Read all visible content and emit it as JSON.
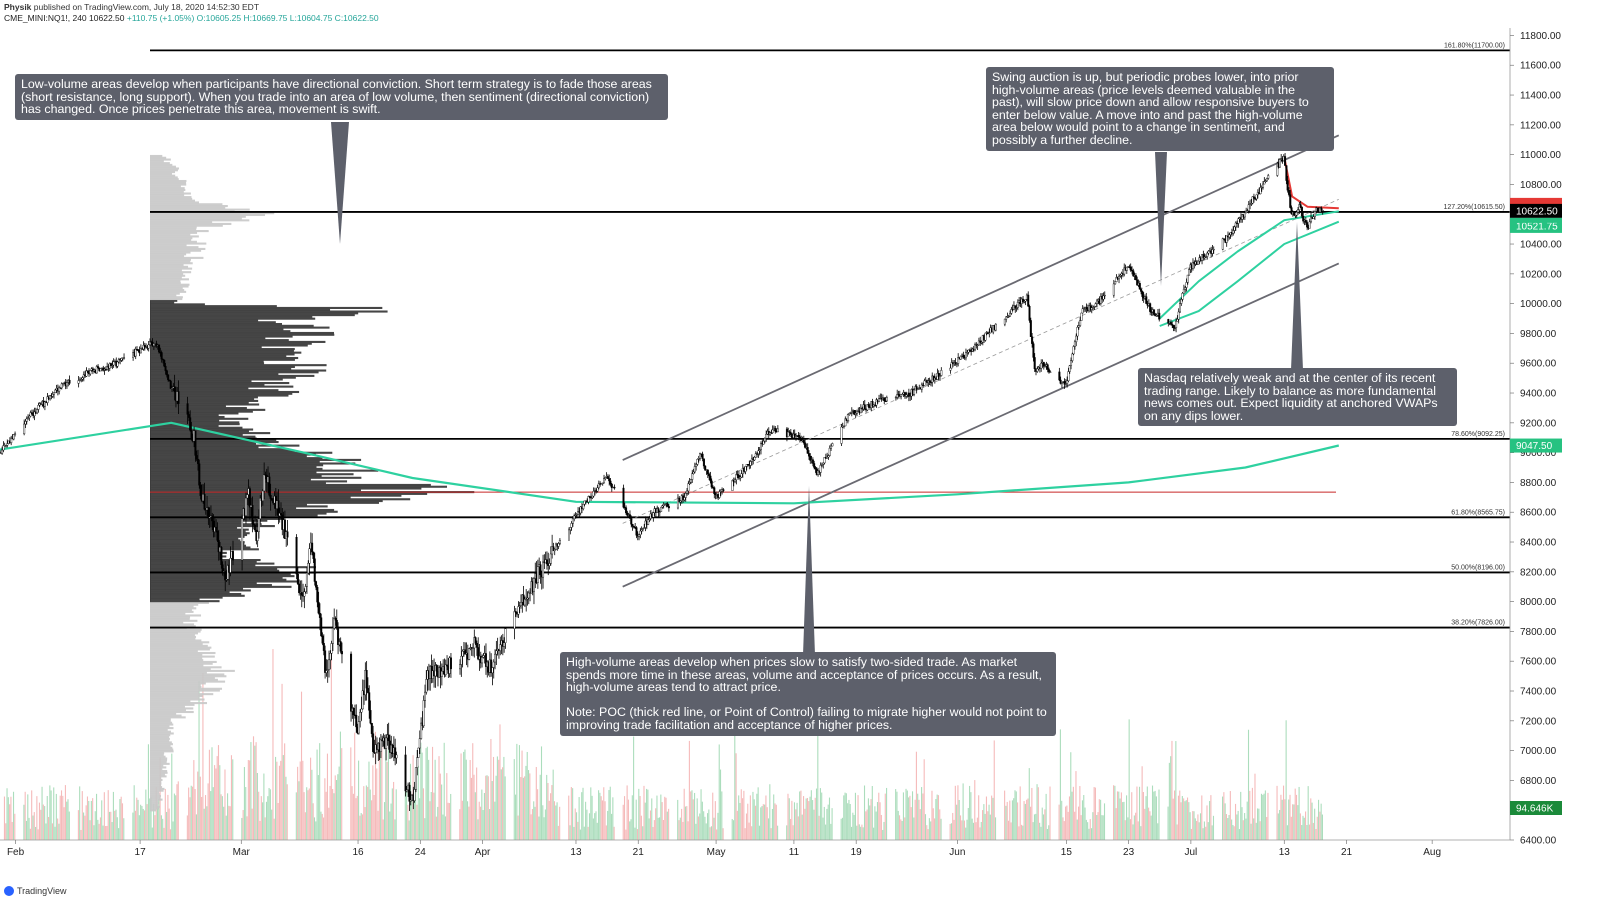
{
  "header": {
    "publisher": "Physik",
    "publish_line": " published on TradingView.com, July 18, 2020 14:52:30 EDT",
    "symbol": "CME_MINI:NQ1!, 240",
    "last": "10622.50",
    "change": "+110.75 (+1.05%)",
    "ohlc": "O:10605.25 H:10669.75 L:10604.75 C:10622.50"
  },
  "footer": {
    "brand": "TradingView"
  },
  "annotations": {
    "low_volume": "Low-volume areas develop when participants have directional conviction. Short term strategy is to fade those areas (short resistance, long support). When you trade into an area of low volume, then sentiment (directional conviction) has changed. Once prices penetrate this area, movement is swift.",
    "swing_auction": "Swing auction is up, but periodic probes lower, into prior high-volume areas (price levels deemed valuable in the past), will slow price down and allow responsive buyers to enter below value. A move into and past the high-volume area below would point to a change in sentiment, and possibly a further decline.",
    "nasdaq": "Nasdaq relatively weak and at the center of its recent trading range. Likely to balance as more fundamental news comes out. Expect liquidity at anchored VWAPs on any dips lower.",
    "high_volume": "High-volume areas develop when prices slow to satisfy two-sided trade. As market spends more time in these areas, volume and acceptance of prices occurs. As a result, high-volume areas tend to attract price.\n\nNote: POC (thick red line, or Point of Control) failing to migrate higher would not point to improving trade facilitation and acceptance of higher prices."
  },
  "colors": {
    "vwap": "#2ed1a0",
    "poc": "#c62828",
    "candle_up": "#ffffff",
    "candle_down": "#000000",
    "annotation_bg": "#5d606b",
    "price_tag": "#000000",
    "volume_tag": "#1b8a3a",
    "vwap_tag": "#26c281"
  },
  "chart_data": {
    "type": "candlestick",
    "symbol": "CME_MINI:NQ1!",
    "timeframe": "240",
    "ylim": [
      6400,
      11850
    ],
    "xlim": [
      "2020-01-30",
      "2020-08-11"
    ],
    "y_ticks": [
      6400,
      6600,
      6800,
      7000,
      7200,
      7400,
      7600,
      7800,
      8000,
      8200,
      8400,
      8600,
      8800,
      9000,
      9200,
      9400,
      9600,
      9800,
      10000,
      10200,
      10400,
      10600,
      10800,
      11000,
      11200,
      11400,
      11600,
      11800
    ],
    "y_tick_labels": [
      "6400.00",
      "6600.00",
      "6800.00",
      "7000.00",
      "7200.00",
      "7400.00",
      "7600.00",
      "7800.00",
      "8000.00",
      "8200.00",
      "8400.00",
      "8600.00",
      "8800.00",
      "9000.00",
      "9200.00",
      "9400.00",
      "9600.00",
      "9800.00",
      "10000.00",
      "10200.00",
      "10400.00",
      "10600.00",
      "10800.00",
      "11000.00",
      "11200.00",
      "11400.00",
      "11600.00",
      "11800.00"
    ],
    "x_ticks": [
      {
        "label": "Feb",
        "date": "2020-02-01"
      },
      {
        "label": "17",
        "date": "2020-02-17"
      },
      {
        "label": "Mar",
        "date": "2020-03-01"
      },
      {
        "label": "16",
        "date": "2020-03-16"
      },
      {
        "label": "24",
        "date": "2020-03-24"
      },
      {
        "label": "Apr",
        "date": "2020-04-01"
      },
      {
        "label": "13",
        "date": "2020-04-13"
      },
      {
        "label": "21",
        "date": "2020-04-21"
      },
      {
        "label": "May",
        "date": "2020-05-01"
      },
      {
        "label": "11",
        "date": "2020-05-11"
      },
      {
        "label": "19",
        "date": "2020-05-19"
      },
      {
        "label": "Jun",
        "date": "2020-06-01"
      },
      {
        "label": "15",
        "date": "2020-06-15"
      },
      {
        "label": "23",
        "date": "2020-06-23"
      },
      {
        "label": "Jul",
        "date": "2020-07-01"
      },
      {
        "label": "13",
        "date": "2020-07-13"
      },
      {
        "label": "21",
        "date": "2020-07-21"
      },
      {
        "label": "Aug",
        "date": "2020-08-01"
      }
    ],
    "price_path": [
      [
        "2020-01-30",
        9000
      ],
      [
        "2020-02-03",
        9250
      ],
      [
        "2020-02-07",
        9450
      ],
      [
        "2020-02-11",
        9550
      ],
      [
        "2020-02-14",
        9600
      ],
      [
        "2020-02-19",
        9750
      ],
      [
        "2020-02-21",
        9450
      ],
      [
        "2020-02-24",
        9100
      ],
      [
        "2020-02-25",
        8700
      ],
      [
        "2020-02-27",
        8400
      ],
      [
        "2020-02-28",
        8150
      ],
      [
        "2020-03-02",
        8700
      ],
      [
        "2020-03-03",
        8450
      ],
      [
        "2020-03-04",
        8850
      ],
      [
        "2020-03-06",
        8600
      ],
      [
        "2020-03-09",
        8000
      ],
      [
        "2020-03-10",
        8400
      ],
      [
        "2020-03-12",
        7500
      ],
      [
        "2020-03-13",
        7900
      ],
      [
        "2020-03-16",
        7100
      ],
      [
        "2020-03-17",
        7500
      ],
      [
        "2020-03-18",
        7000
      ],
      [
        "2020-03-20",
        7050
      ],
      [
        "2020-03-23",
        6650
      ],
      [
        "2020-03-25",
        7500
      ],
      [
        "2020-03-27",
        7550
      ],
      [
        "2020-03-31",
        7700
      ],
      [
        "2020-04-02",
        7550
      ],
      [
        "2020-04-06",
        8000
      ],
      [
        "2020-04-09",
        8250
      ],
      [
        "2020-04-14",
        8650
      ],
      [
        "2020-04-17",
        8850
      ],
      [
        "2020-04-21",
        8450
      ],
      [
        "2020-04-23",
        8600
      ],
      [
        "2020-04-27",
        8700
      ],
      [
        "2020-04-29",
        9000
      ],
      [
        "2020-05-01",
        8700
      ],
      [
        "2020-05-05",
        8900
      ],
      [
        "2020-05-08",
        9150
      ],
      [
        "2020-05-12",
        9100
      ],
      [
        "2020-05-14",
        8850
      ],
      [
        "2020-05-18",
        9250
      ],
      [
        "2020-05-22",
        9350
      ],
      [
        "2020-05-26",
        9400
      ],
      [
        "2020-05-29",
        9500
      ],
      [
        "2020-06-02",
        9650
      ],
      [
        "2020-06-05",
        9800
      ],
      [
        "2020-06-10",
        10050
      ],
      [
        "2020-06-11",
        9550
      ],
      [
        "2020-06-12",
        9600
      ],
      [
        "2020-06-15",
        9450
      ],
      [
        "2020-06-17",
        9950
      ],
      [
        "2020-06-19",
        10000
      ],
      [
        "2020-06-23",
        10250
      ],
      [
        "2020-06-26",
        9950
      ],
      [
        "2020-06-29",
        9850
      ],
      [
        "2020-07-01",
        10250
      ],
      [
        "2020-07-06",
        10450
      ],
      [
        "2020-07-09",
        10700
      ],
      [
        "2020-07-13",
        10980
      ],
      [
        "2020-07-14",
        10580
      ],
      [
        "2020-07-15",
        10650
      ],
      [
        "2020-07-16",
        10500
      ],
      [
        "2020-07-17",
        10622.5
      ]
    ],
    "fib_levels": [
      {
        "label": "161.80%(11700.00)",
        "price": 11700
      },
      {
        "label": "127.20%(10615.50)",
        "price": 10615.5
      },
      {
        "label": "78.60%(9092.25)",
        "price": 9092.25
      },
      {
        "label": "61.80%(8565.75)",
        "price": 8565.75
      },
      {
        "label": "50.00%(8196.00)",
        "price": 8196
      },
      {
        "label": "38.20%(7826.00)",
        "price": 7826
      }
    ],
    "poc_price": 8735,
    "channel": {
      "upper": [
        [
          "2020-04-19",
          8950
        ],
        [
          "2020-07-20",
          11130
        ]
      ],
      "lower": [
        [
          "2020-04-19",
          8100
        ],
        [
          "2020-07-20",
          10270
        ]
      ],
      "mid": [
        [
          "2020-04-19",
          8525
        ],
        [
          "2020-07-20",
          10700
        ]
      ]
    },
    "vwap_long": [
      [
        "2020-01-30",
        9020
      ],
      [
        "2020-02-21",
        9200
      ],
      [
        "2020-03-09",
        9000
      ],
      [
        "2020-03-23",
        8830
      ],
      [
        "2020-04-13",
        8670
      ],
      [
        "2020-05-11",
        8660
      ],
      [
        "2020-06-01",
        8720
      ],
      [
        "2020-06-23",
        8800
      ],
      [
        "2020-07-08",
        8900
      ],
      [
        "2020-07-20",
        9047.5
      ]
    ],
    "vwap_upper": [
      [
        "2020-06-27",
        9900
      ],
      [
        "2020-07-02",
        10150
      ],
      [
        "2020-07-07",
        10350
      ],
      [
        "2020-07-13",
        10560
      ],
      [
        "2020-07-20",
        10620
      ]
    ],
    "vwap_lower": [
      [
        "2020-06-27",
        9850
      ],
      [
        "2020-07-02",
        9950
      ],
      [
        "2020-07-07",
        10150
      ],
      [
        "2020-07-13",
        10400
      ],
      [
        "2020-07-20",
        10550
      ]
    ],
    "red_vwap": [
      [
        "2020-07-13",
        10980
      ],
      [
        "2020-07-14",
        10720
      ],
      [
        "2020-07-16",
        10650
      ],
      [
        "2020-07-20",
        10640
      ]
    ],
    "volume_profile": [
      [
        6600,
        0.03
      ],
      [
        6800,
        0.05
      ],
      [
        7000,
        0.07
      ],
      [
        7200,
        0.09
      ],
      [
        7400,
        0.22
      ],
      [
        7500,
        0.28
      ],
      [
        7600,
        0.2
      ],
      [
        7800,
        0.18
      ],
      [
        7900,
        0.15
      ],
      [
        8000,
        0.2
      ],
      [
        8100,
        0.45
      ],
      [
        8150,
        0.55
      ],
      [
        8200,
        0.58
      ],
      [
        8300,
        0.3
      ],
      [
        8400,
        0.35
      ],
      [
        8500,
        0.4
      ],
      [
        8600,
        0.55
      ],
      [
        8700,
        0.8
      ],
      [
        8735,
        1.0
      ],
      [
        8800,
        0.78
      ],
      [
        8900,
        0.72
      ],
      [
        9000,
        0.55
      ],
      [
        9100,
        0.42
      ],
      [
        9200,
        0.3
      ],
      [
        9300,
        0.35
      ],
      [
        9400,
        0.45
      ],
      [
        9500,
        0.5
      ],
      [
        9600,
        0.55
      ],
      [
        9700,
        0.5
      ],
      [
        9800,
        0.55
      ],
      [
        9900,
        0.5
      ],
      [
        9975,
        0.88
      ],
      [
        10000,
        0.1
      ],
      [
        10100,
        0.12
      ],
      [
        10200,
        0.14
      ],
      [
        10300,
        0.16
      ],
      [
        10400,
        0.18
      ],
      [
        10500,
        0.2
      ],
      [
        10600,
        0.38
      ],
      [
        10650,
        0.3
      ],
      [
        10700,
        0.15
      ],
      [
        10800,
        0.12
      ],
      [
        10900,
        0.09
      ],
      [
        11000,
        0.05
      ]
    ],
    "volume_profile_zone": [
      8000,
      10020
    ],
    "price_tags": [
      {
        "label": "10521.75",
        "price": 10521.75,
        "kind": "vwap"
      },
      {
        "label": "10622.50",
        "price": 10622.5,
        "kind": "price"
      },
      {
        "label": "9047.50",
        "price": 9047.5,
        "kind": "vwap"
      }
    ],
    "volume_tag": "94.646K"
  }
}
